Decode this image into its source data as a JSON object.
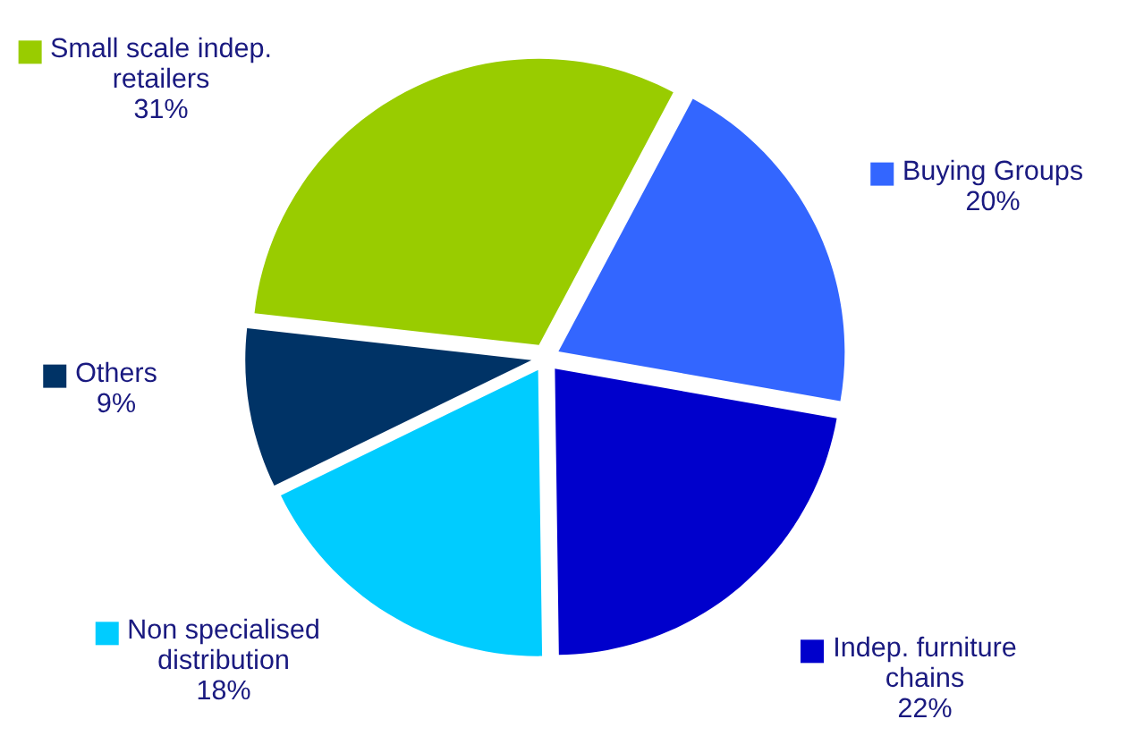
{
  "chart_data": {
    "type": "pie",
    "categories": [
      "Buying Groups",
      "Indep. furniture\nchains",
      "Non specialised\ndistribution",
      "Others",
      "Small scale indep.\nretailers"
    ],
    "values": [
      20,
      22,
      18,
      9,
      31
    ],
    "value_labels": [
      "20%",
      "22%",
      "18%",
      "9%",
      "31%"
    ],
    "colors": [
      "#3366ff",
      "#0000cc",
      "#00ccff",
      "#003366",
      "#99cc00"
    ],
    "legend": "bottom right"
  }
}
